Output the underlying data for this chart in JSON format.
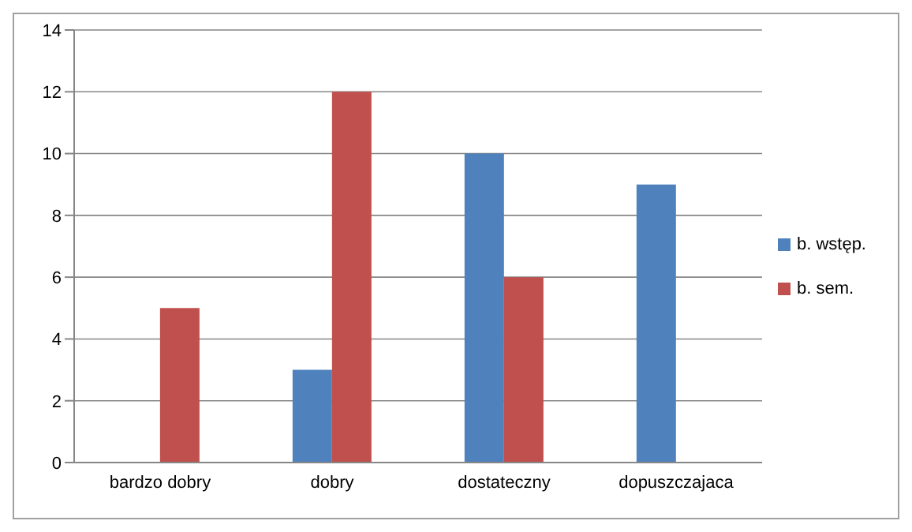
{
  "chart_data": {
    "type": "bar",
    "categories": [
      "bardzo dobry",
      "dobry",
      "dostateczny",
      "dopuszczajaca"
    ],
    "series": [
      {
        "name": "b. wstęp.",
        "color": "#4f81bd",
        "values": [
          0,
          3,
          10,
          9
        ]
      },
      {
        "name": "b. sem.",
        "color": "#c0504d",
        "values": [
          5,
          12,
          6,
          0
        ]
      }
    ],
    "ylim": [
      0,
      14
    ],
    "yticks": [
      0,
      2,
      4,
      6,
      8,
      10,
      12,
      14
    ],
    "grid": "y",
    "legend": "right"
  }
}
